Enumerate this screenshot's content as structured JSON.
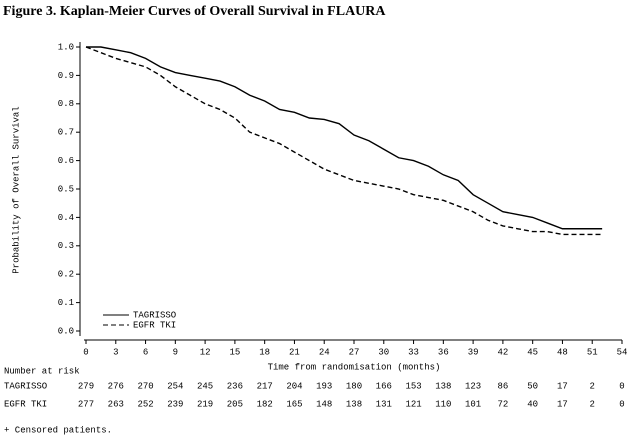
{
  "chart_data": {
    "type": "line",
    "title": "Figure 3. Kaplan-Meier Curves of Overall Survival in FLAURA",
    "x_label": "Time from randomisation (months)",
    "y_label": "Probability of Overall Survival",
    "x": [
      0,
      1.5,
      3,
      4.5,
      6,
      7.5,
      9,
      10.5,
      12,
      13.5,
      15,
      16.5,
      18,
      19.5,
      21,
      22.5,
      24,
      25.5,
      27,
      28.5,
      30,
      31.5,
      33,
      34.5,
      36,
      37.5,
      39,
      40.5,
      42,
      43.5,
      45,
      46.5,
      48,
      49.5,
      51,
      52
    ],
    "series": [
      {
        "name": "TAGRISSO",
        "color": "#000000",
        "dash": "solid",
        "values": [
          1.0,
          1.0,
          0.99,
          0.98,
          0.96,
          0.93,
          0.91,
          0.9,
          0.89,
          0.88,
          0.86,
          0.83,
          0.81,
          0.78,
          0.77,
          0.75,
          0.745,
          0.73,
          0.69,
          0.67,
          0.64,
          0.61,
          0.6,
          0.58,
          0.55,
          0.53,
          0.48,
          0.45,
          0.42,
          0.41,
          0.4,
          0.38,
          0.36,
          0.36,
          0.36,
          0.36
        ]
      },
      {
        "name": "EGFR TKI",
        "color": "#000000",
        "dash": "dashed",
        "values": [
          1.0,
          0.98,
          0.96,
          0.945,
          0.93,
          0.9,
          0.86,
          0.83,
          0.8,
          0.78,
          0.75,
          0.7,
          0.68,
          0.66,
          0.63,
          0.6,
          0.57,
          0.55,
          0.53,
          0.52,
          0.51,
          0.5,
          0.48,
          0.47,
          0.46,
          0.44,
          0.42,
          0.39,
          0.37,
          0.36,
          0.35,
          0.35,
          0.34,
          0.34,
          0.34,
          0.34
        ]
      }
    ],
    "xlim": [
      0,
      54
    ],
    "xticks": [
      0,
      3,
      6,
      9,
      12,
      15,
      18,
      21,
      24,
      27,
      30,
      33,
      36,
      39,
      42,
      45,
      48,
      51,
      54
    ],
    "ylim": [
      0,
      1
    ],
    "yticks": [
      {
        "value": 0,
        "label": "0.0"
      },
      0.1,
      0.2,
      0.3,
      0.4,
      0.5,
      0.6,
      0.7,
      0.8,
      0.9,
      {
        "value": 1,
        "label": "1.0"
      }
    ],
    "legend": "lower left",
    "number_at_risk": {
      "label": "Number at risk",
      "rows": [
        {
          "name": "TAGRISSO",
          "values": [
            279,
            276,
            270,
            254,
            245,
            236,
            217,
            204,
            193,
            180,
            166,
            153,
            138,
            123,
            86,
            50,
            17,
            2,
            0
          ]
        },
        {
          "name": "EGFR TKI",
          "values": [
            277,
            263,
            252,
            239,
            219,
            205,
            182,
            165,
            148,
            138,
            131,
            121,
            110,
            101,
            72,
            40,
            17,
            2,
            0
          ]
        }
      ]
    },
    "footnote": "+ Censored patients."
  }
}
